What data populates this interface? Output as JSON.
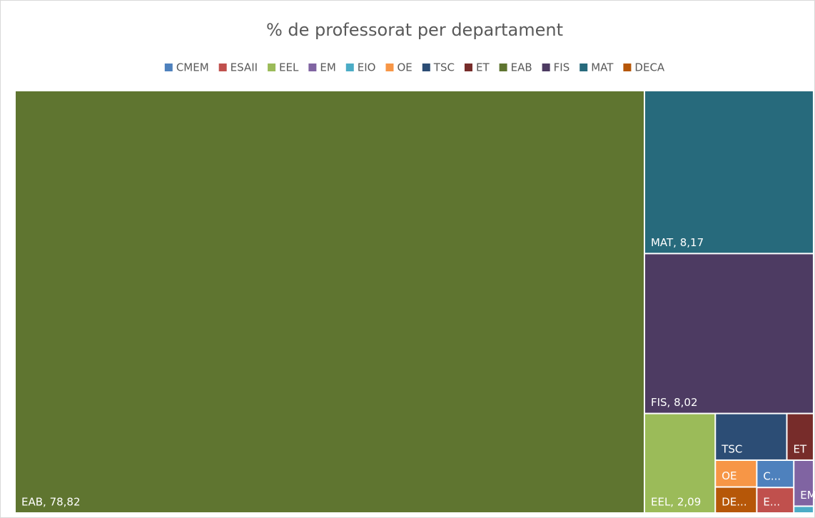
{
  "chart_data": {
    "type": "treemap",
    "title": "% de professorat per departament",
    "categories": [
      "CMEM",
      "ESAII",
      "EEL",
      "EM",
      "EIO",
      "OE",
      "TSC",
      "ET",
      "EAB",
      "FIS",
      "MAT",
      "DECA"
    ],
    "values": [
      0.3,
      0.28,
      2.09,
      0.27,
      0.04,
      0.33,
      0.99,
      0.37,
      78.82,
      8.02,
      8.17,
      0.32
    ],
    "labels": [
      "C...",
      "E...",
      "EEL, 2,09",
      "EM",
      null,
      "OE",
      "TSC",
      "ET",
      "EAB, 78,82",
      "FIS, 8,02",
      "MAT, 8,17",
      "DE..."
    ],
    "colors": [
      "#4e81bd",
      "#c0504d",
      "#9bbb59",
      "#8064a2",
      "#4bacc6",
      "#f79646",
      "#2c4d75",
      "#772c2a",
      "#5f7530",
      "#4d3b62",
      "#276a7c",
      "#b65708"
    ],
    "legend": "top"
  }
}
